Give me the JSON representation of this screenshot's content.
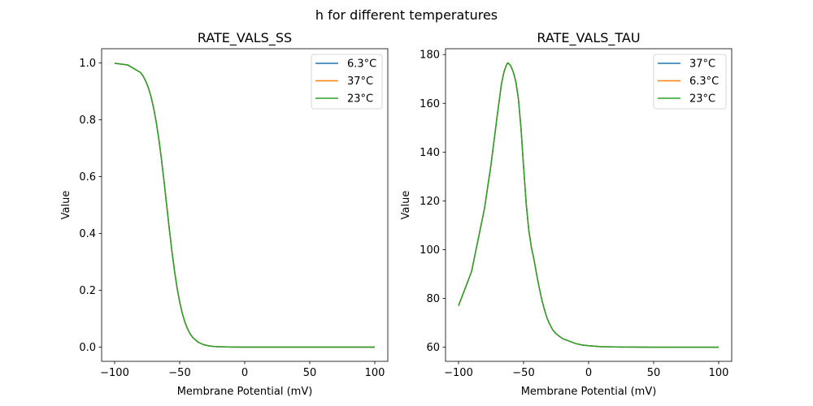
{
  "figure_title": "h for different temperatures",
  "chart_data": [
    {
      "type": "line",
      "title": "RATE_VALS_SS",
      "xlabel": "Membrane Potential (mV)",
      "ylabel": "Value",
      "xlim": [
        -110,
        110
      ],
      "ylim": [
        -0.05,
        1.05
      ],
      "xticks": [
        -100,
        -50,
        0,
        50,
        100
      ],
      "xtick_labels": [
        "−100",
        "−50",
        "0",
        "50",
        "100"
      ],
      "yticks": [
        0,
        0.2,
        0.4,
        0.6,
        0.8,
        1.0
      ],
      "ytick_labels": [
        "0.0",
        "0.2",
        "0.4",
        "0.6",
        "0.8",
        "1.0"
      ],
      "legend_position": "top-right",
      "x": [
        -100,
        -90,
        -80,
        -78,
        -76,
        -74,
        -72,
        -70,
        -68,
        -66,
        -64,
        -62,
        -60,
        -58,
        -56,
        -54,
        -52,
        -50,
        -48,
        -46,
        -44,
        -42,
        -40,
        -36,
        -32,
        -28,
        -24,
        -20,
        -10,
        0,
        100
      ],
      "series": [
        {
          "name": "6.3°C",
          "color": "#1f77b4",
          "values": [
            0.999,
            0.993,
            0.966,
            0.953,
            0.935,
            0.912,
            0.881,
            0.841,
            0.791,
            0.731,
            0.661,
            0.583,
            0.5,
            0.417,
            0.339,
            0.269,
            0.209,
            0.159,
            0.119,
            0.088,
            0.065,
            0.047,
            0.034,
            0.018,
            0.0093,
            0.0048,
            0.0025,
            0.0013,
            0.0002,
            0,
            0
          ]
        },
        {
          "name": "37°C",
          "color": "#ff7f0e",
          "values": [
            0.999,
            0.993,
            0.966,
            0.953,
            0.935,
            0.912,
            0.881,
            0.841,
            0.791,
            0.731,
            0.661,
            0.583,
            0.5,
            0.417,
            0.339,
            0.269,
            0.209,
            0.159,
            0.119,
            0.088,
            0.065,
            0.047,
            0.034,
            0.018,
            0.0093,
            0.0048,
            0.0025,
            0.0013,
            0.0002,
            0,
            0
          ]
        },
        {
          "name": "23°C",
          "color": "#2ca02c",
          "values": [
            0.999,
            0.993,
            0.966,
            0.953,
            0.935,
            0.912,
            0.881,
            0.841,
            0.791,
            0.731,
            0.661,
            0.583,
            0.5,
            0.417,
            0.339,
            0.269,
            0.209,
            0.159,
            0.119,
            0.088,
            0.065,
            0.047,
            0.034,
            0.018,
            0.0093,
            0.0048,
            0.0025,
            0.0013,
            0.0002,
            0,
            0
          ]
        }
      ]
    },
    {
      "type": "line",
      "title": "RATE_VALS_TAU",
      "xlabel": "Membrane Potential (mV)",
      "ylabel": "Value",
      "xlim": [
        -110,
        110
      ],
      "ylim": [
        54.2,
        182.4
      ],
      "xticks": [
        -100,
        -50,
        0,
        50,
        100
      ],
      "xtick_labels": [
        "−100",
        "−50",
        "0",
        "50",
        "100"
      ],
      "yticks": [
        60,
        80,
        100,
        120,
        140,
        160,
        180
      ],
      "ytick_labels": [
        "60",
        "80",
        "100",
        "120",
        "140",
        "160",
        "180"
      ],
      "legend_position": "top-right",
      "x": [
        -100,
        -90,
        -80,
        -75,
        -70,
        -67,
        -65,
        -63,
        -62,
        -60,
        -58,
        -56,
        -54,
        -52,
        -50,
        -48,
        -46,
        -44,
        -42,
        -40,
        -38,
        -36,
        -34,
        -32,
        -30,
        -27.5,
        -25,
        -20,
        -15,
        -10,
        -5,
        0,
        10,
        20,
        30,
        50,
        100
      ],
      "series": [
        {
          "name": "37°C",
          "color": "#1f77b4",
          "values": [
            77,
            91,
            117,
            135,
            156,
            168,
            173,
            176,
            176.6,
            175.5,
            173,
            169,
            162,
            150,
            134,
            119,
            108,
            101,
            96,
            90,
            84.5,
            79.5,
            75.5,
            72,
            69.5,
            67,
            65.5,
            63.5,
            62.5,
            61.5,
            60.9,
            60.6,
            60.2,
            60.1,
            60.05,
            60,
            60
          ]
        },
        {
          "name": "6.3°C",
          "color": "#ff7f0e",
          "values": [
            77,
            91,
            117,
            135,
            156,
            168,
            173,
            176,
            176.6,
            175.5,
            173,
            169,
            162,
            150,
            134,
            119,
            108,
            101,
            96,
            90,
            84.5,
            79.5,
            75.5,
            72,
            69.5,
            67,
            65.5,
            63.5,
            62.5,
            61.5,
            60.9,
            60.6,
            60.2,
            60.1,
            60.05,
            60,
            60
          ]
        },
        {
          "name": "23°C",
          "color": "#2ca02c",
          "values": [
            77,
            91,
            117,
            135,
            156,
            168,
            173,
            176,
            176.6,
            175.5,
            173,
            169,
            162,
            150,
            134,
            119,
            108,
            101,
            96,
            90,
            84.5,
            79.5,
            75.5,
            72,
            69.5,
            67,
            65.5,
            63.5,
            62.5,
            61.5,
            60.9,
            60.6,
            60.2,
            60.1,
            60.05,
            60,
            60
          ]
        }
      ]
    }
  ]
}
